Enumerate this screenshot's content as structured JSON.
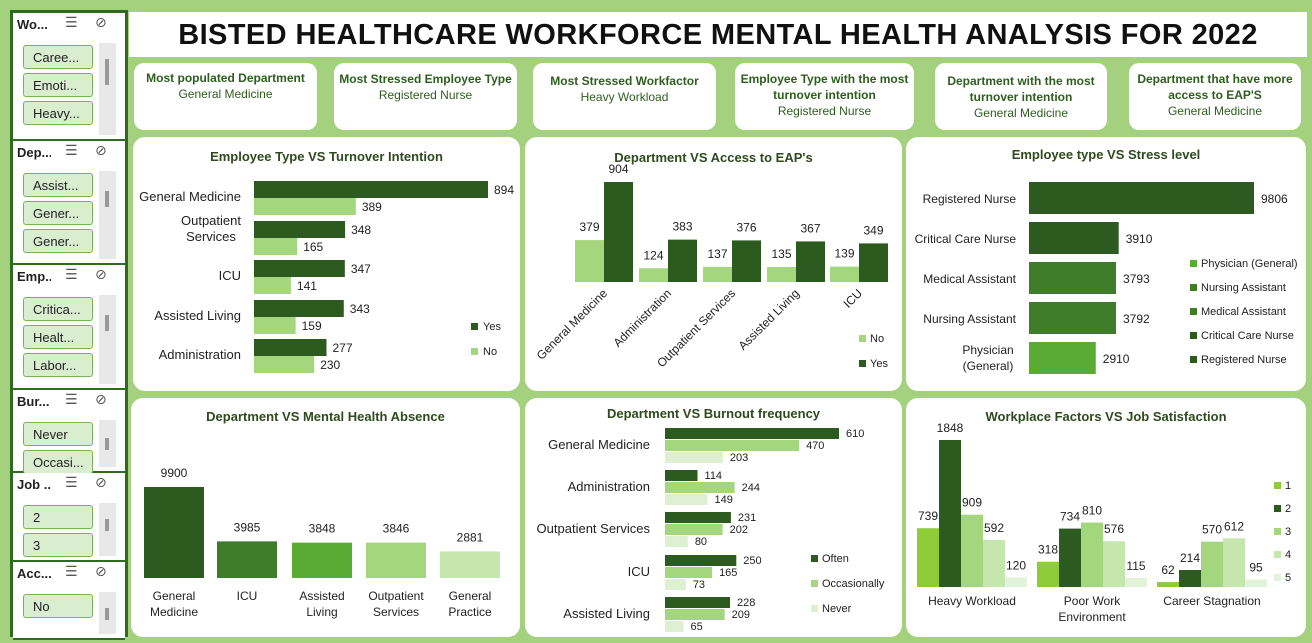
{
  "title": "BISTED HEALTHCARE WORKFORCE MENTAL HEALTH ANALYSIS FOR 2022",
  "icons": {
    "multi_select": "multi-select-icon",
    "clear_filter": "clear-filter-icon"
  },
  "colors": {
    "dark": "#2d5a1f",
    "mid": "#4a8f2e",
    "light": "#a3d67d",
    "pale": "#c5e6ac",
    "lime": "#8ecc38"
  },
  "slicers": [
    {
      "title": "Wo...",
      "items": [
        "Caree...",
        "Emoti...",
        "Heavy..."
      ]
    },
    {
      "title": "Dep...",
      "items": [
        "Assist...",
        "Gener...",
        "Gener..."
      ]
    },
    {
      "title": "Emp...",
      "items": [
        "Critica...",
        "Healt...",
        "Labor..."
      ]
    },
    {
      "title": "Bur...",
      "items": [
        "Never",
        "Occasi..."
      ]
    },
    {
      "title": "Job ...",
      "items": [
        "2",
        "3"
      ]
    },
    {
      "title": "Acc...",
      "items": [
        "No"
      ]
    }
  ],
  "kpis": [
    {
      "label": "Most populated Department",
      "value": "General Medicine"
    },
    {
      "label": "Most Stressed Employee Type",
      "value": "Registered Nurse"
    },
    {
      "label": "Most Stressed Workfactor",
      "value": "Heavy Workload"
    },
    {
      "label": "Employee Type with the most turnover intention",
      "value": "Registered Nurse"
    },
    {
      "label": "Department with the most turnover intention",
      "value": "General Medicine"
    },
    {
      "label": "Department that have more access to EAP'S",
      "value": "General Medicine"
    }
  ],
  "chart_data": [
    {
      "type": "bar",
      "orientation": "horizontal",
      "title": "Employee Type VS Turnover Intention",
      "categories": [
        "General Medicine",
        "Outpatient Services",
        "ICU",
        "Assisted Living",
        "Administration"
      ],
      "series": [
        {
          "name": "Yes",
          "values": [
            894,
            348,
            347,
            343,
            277
          ],
          "color": "#2d5a1f"
        },
        {
          "name": "No",
          "values": [
            389,
            165,
            141,
            159,
            230
          ],
          "color": "#a3d67d"
        }
      ],
      "legend": "right"
    },
    {
      "type": "bar",
      "title": "Department VS Access to EAP's",
      "categories": [
        "General Medicine",
        "Administration",
        "Outpatient Services",
        "Assisted Living",
        "ICU"
      ],
      "series": [
        {
          "name": "No",
          "values": [
            379,
            124,
            137,
            135,
            139
          ],
          "color": "#a3d67d"
        },
        {
          "name": "Yes",
          "values": [
            904,
            383,
            376,
            367,
            349
          ],
          "color": "#2d5a1f"
        }
      ],
      "legend": "bottom-right"
    },
    {
      "type": "bar",
      "orientation": "horizontal",
      "title": "Employee type VS Stress level",
      "categories": [
        "Registered Nurse",
        "Critical Care Nurse",
        "Medical Assistant",
        "Nursing Assistant",
        "Physician (General)"
      ],
      "values": [
        9806,
        3910,
        3793,
        3792,
        2910
      ],
      "legend_entries": [
        "Physician (General)",
        "Nursing Assistant",
        "Medical Assistant",
        "Critical Care Nurse",
        "Registered Nurse"
      ],
      "colors": [
        "#2d5a1f",
        "#2d5a1f",
        "#3f7d2a",
        "#3f7d2a",
        "#5aab34"
      ],
      "legend": "right"
    },
    {
      "type": "bar",
      "title": "Department VS Mental Health Absence",
      "categories": [
        "General Medicine",
        "ICU",
        "Assisted Living",
        "Outpatient Services",
        "General Practice"
      ],
      "values": [
        9900,
        3985,
        3848,
        3846,
        2881
      ],
      "colors": [
        "#2d5a1f",
        "#3f7d2a",
        "#5aab34",
        "#a3d67d",
        "#c5e6ac"
      ]
    },
    {
      "type": "bar",
      "orientation": "horizontal",
      "title": "Department VS Burnout frequency",
      "categories": [
        "General Medicine",
        "Administration",
        "Outpatient Services",
        "ICU",
        "Assisted Living"
      ],
      "series": [
        {
          "name": "Often",
          "values": [
            610,
            114,
            231,
            250,
            228
          ],
          "color": "#2d5a1f"
        },
        {
          "name": "Occasionally",
          "values": [
            470,
            244,
            202,
            165,
            209
          ],
          "color": "#a3d67d"
        },
        {
          "name": "Never",
          "values": [
            203,
            149,
            80,
            73,
            65
          ],
          "color": "#dff0d2"
        }
      ],
      "legend": "right"
    },
    {
      "type": "bar",
      "title": "Workplace Factors VS Job Satisfaction",
      "categories": [
        "Heavy Workload",
        "Poor Work Environment",
        "Career Stagnation"
      ],
      "series": [
        {
          "name": "1",
          "values": [
            739,
            318,
            62
          ],
          "color": "#8ecc38"
        },
        {
          "name": "2",
          "values": [
            1848,
            734,
            214
          ],
          "color": "#2d5a1f"
        },
        {
          "name": "3",
          "values": [
            909,
            810,
            570
          ],
          "color": "#a3d67d"
        },
        {
          "name": "4",
          "values": [
            592,
            576,
            612
          ],
          "color": "#c5e6ac"
        },
        {
          "name": "5",
          "values": [
            120,
            115,
            95
          ],
          "color": "#e3f3d9"
        }
      ],
      "legend": "right"
    }
  ]
}
